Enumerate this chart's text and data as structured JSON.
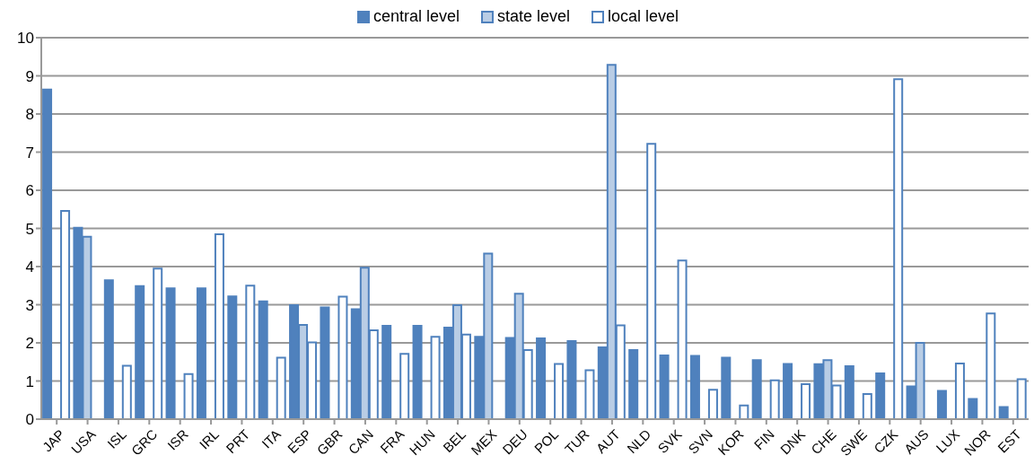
{
  "chart_data": {
    "type": "bar",
    "categories": [
      "JAP",
      "USA",
      "ISL",
      "GRC",
      "ISR",
      "IRL",
      "PRT",
      "ITA",
      "ESP",
      "GBR",
      "CAN",
      "FRA",
      "HUN",
      "BEL",
      "MEX",
      "DEU",
      "POL",
      "TUR",
      "AUT",
      "NLD",
      "SVK",
      "SVN",
      "KOR",
      "FIN",
      "DNK",
      "CHE",
      "SWE",
      "CZK",
      "AUS",
      "LUX",
      "NOR",
      "EST"
    ],
    "series": [
      {
        "name": "central level",
        "color": "#4f81bd",
        "values": [
          8.64,
          5.02,
          3.64,
          3.49,
          3.43,
          3.43,
          3.22,
          3.09,
          2.99,
          2.93,
          2.88,
          2.45,
          2.45,
          2.4,
          2.16,
          2.13,
          2.12,
          2.05,
          1.88,
          1.81,
          1.67,
          1.66,
          1.61,
          1.55,
          1.45,
          1.44,
          1.39,
          1.2,
          0.86,
          0.74,
          0.53,
          0.32
        ]
      },
      {
        "name": "state level",
        "color": "#b9cde5",
        "values": [
          null,
          4.78,
          null,
          null,
          null,
          null,
          null,
          null,
          2.47,
          null,
          3.97,
          null,
          null,
          2.99,
          4.34,
          3.29,
          null,
          null,
          9.29,
          null,
          null,
          null,
          null,
          null,
          null,
          1.55,
          null,
          null,
          2.0,
          null,
          null,
          null
        ]
      },
      {
        "name": "local level",
        "color": "#ffffff",
        "values": [
          5.46,
          null,
          1.4,
          3.95,
          1.18,
          4.85,
          3.5,
          1.61,
          2.01,
          3.21,
          2.33,
          1.71,
          2.16,
          2.22,
          null,
          1.81,
          1.45,
          1.28,
          2.46,
          7.22,
          4.16,
          0.77,
          0.36,
          1.02,
          0.92,
          0.88,
          0.66,
          8.91,
          null,
          1.46,
          2.77,
          1.05
        ]
      }
    ],
    "ylim": [
      0,
      10
    ],
    "yticks": [
      0,
      1,
      2,
      3,
      4,
      5,
      6,
      7,
      8,
      9,
      10
    ],
    "grid": "y",
    "legend": "top"
  }
}
